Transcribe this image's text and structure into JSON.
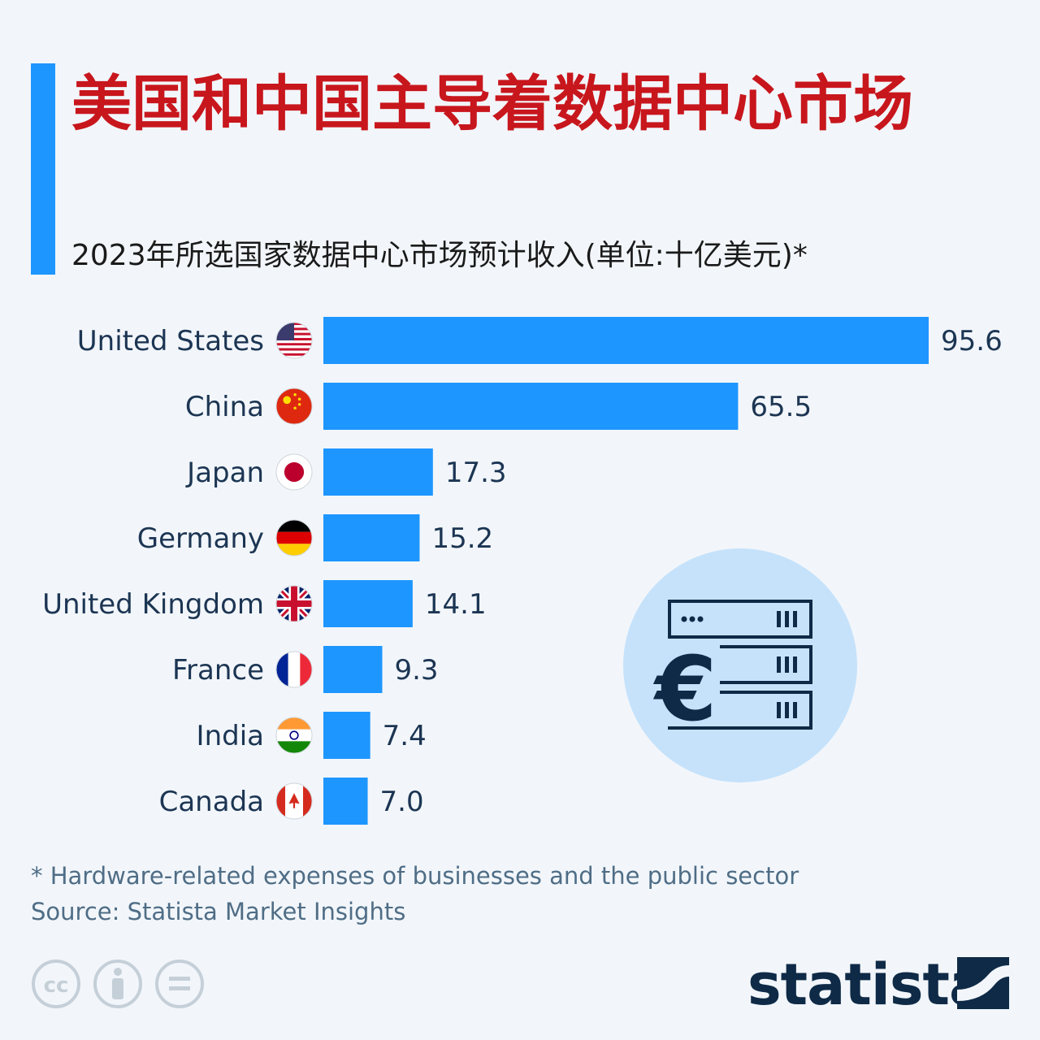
{
  "header": {
    "title": "美国和中国主导着数据中心市场",
    "subtitle": "2023年所选国家数据中心市场预计收入(单位:十亿美元)*"
  },
  "chart_data": {
    "type": "bar",
    "orientation": "horizontal",
    "categories": [
      "United States",
      "China",
      "Japan",
      "Germany",
      "United Kingdom",
      "France",
      "India",
      "Canada"
    ],
    "values": [
      95.6,
      65.5,
      17.3,
      15.2,
      14.1,
      9.3,
      7.4,
      7.0
    ],
    "value_labels": [
      "95.6",
      "65.5",
      "17.3",
      "15.2",
      "14.1",
      "9.3",
      "7.4",
      "7.0"
    ],
    "xlim": [
      0,
      95.6
    ],
    "bar_color": "#1e96ff",
    "grid": false,
    "flag_icons": [
      "us-flag-icon",
      "china-flag-icon",
      "japan-flag-icon",
      "germany-flag-icon",
      "uk-flag-icon",
      "france-flag-icon",
      "india-flag-icon",
      "canada-flag-icon"
    ]
  },
  "footer": {
    "footnote": "* Hardware-related expenses of businesses and the public sector",
    "source": "Source: Statista Market Insights",
    "brand": "statista"
  },
  "colors": {
    "title": "#c8161d",
    "accent": "#1e96ff",
    "text": "#1c3553"
  },
  "illustration": {
    "icon": "server-euro-icon",
    "symbol": "€"
  }
}
